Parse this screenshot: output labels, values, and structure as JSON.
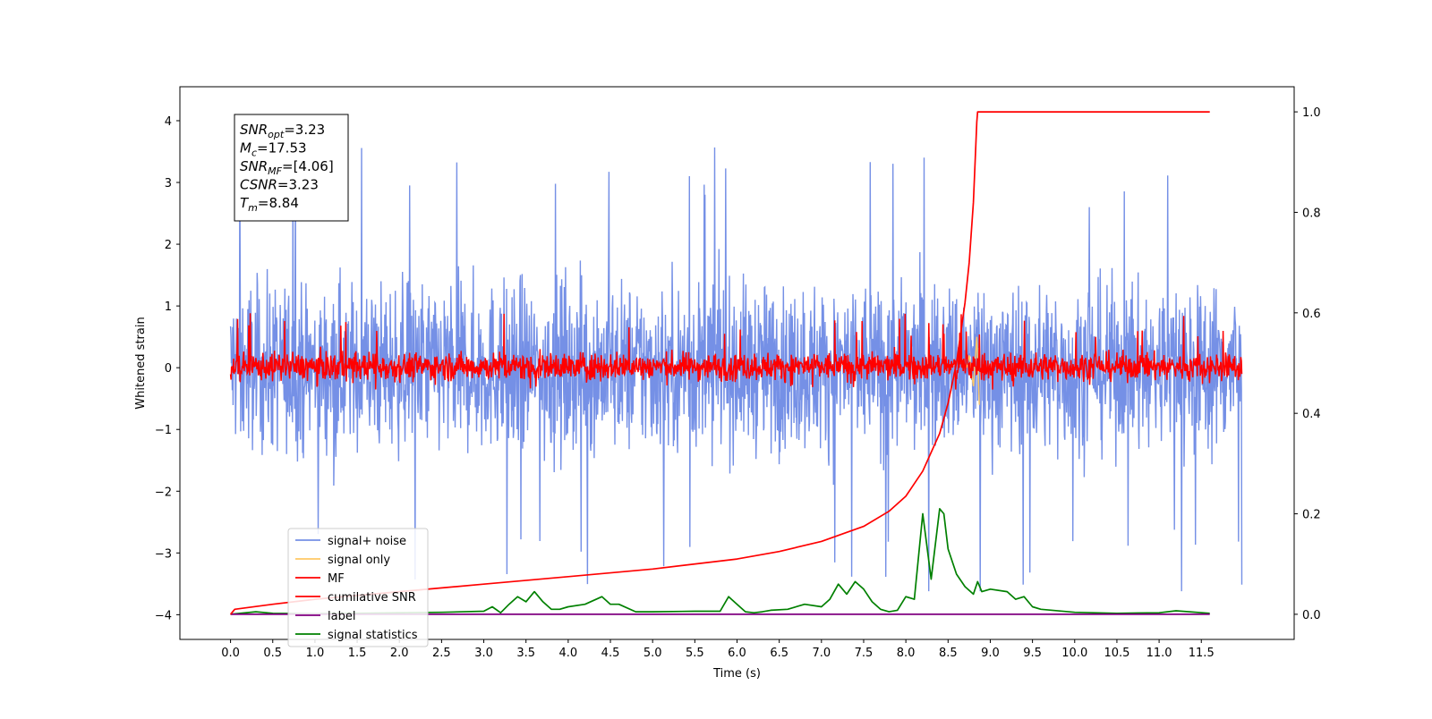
{
  "chart_data": {
    "type": "line",
    "xlabel": "Time (s)",
    "ylabel": "Whitened strain",
    "xlim": [
      -0.6,
      12.6
    ],
    "ylim": [
      -4.4,
      4.55
    ],
    "ylim_right": [
      -0.05,
      1.05
    ],
    "x_ticks": [
      "0.0",
      "0.5",
      "1.0",
      "1.5",
      "2.0",
      "2.5",
      "3.0",
      "3.5",
      "4.0",
      "4.5",
      "5.0",
      "5.5",
      "6.0",
      "6.5",
      "7.0",
      "7.5",
      "8.0",
      "8.5",
      "9.0",
      "9.5",
      "10.0",
      "10.5",
      "11.0",
      "11.5"
    ],
    "y_ticks": [
      "4",
      "3",
      "2",
      "1",
      "0",
      "−1",
      "−2",
      "−3",
      "−4"
    ],
    "y_ticks_right": [
      "1.0",
      "0.8",
      "0.6",
      "0.4",
      "0.2",
      "0.0"
    ],
    "legend_position": "lower-left",
    "colors": {
      "signal_noise": "#7590e6",
      "signal_only": "#ffc864",
      "mf": "#ff0000",
      "cumulative_snr": "#ff0000",
      "label": "#800080",
      "signal_statistics": "#008000"
    },
    "series": [
      {
        "name": "signal+ noise",
        "description_range": [
          -3.6,
          4.2
        ],
        "envelope": {
          "upper": 2.3,
          "lower": -2.2,
          "spike_max": 4.17,
          "spike_min": -3.62
        }
      },
      {
        "name": "signal only",
        "x": [
          8.72,
          8.75,
          8.8,
          8.84,
          8.87
        ],
        "values": [
          0.0,
          0.2,
          -0.3,
          0.5,
          -0.6
        ]
      },
      {
        "name": "MF",
        "envelope": {
          "upper": 0.45,
          "lower": -0.35,
          "spike_max": 1.0,
          "spike_min": -0.45
        }
      },
      {
        "name": "cumilative SNR",
        "axis": "right",
        "x": [
          0.0,
          0.05,
          0.5,
          1.0,
          2.0,
          3.0,
          4.0,
          5.0,
          6.0,
          6.5,
          7.0,
          7.5,
          7.8,
          8.0,
          8.2,
          8.4,
          8.5,
          8.6,
          8.7,
          8.75,
          8.8,
          8.84,
          8.85,
          11.6
        ],
        "values": [
          0.0,
          0.01,
          0.02,
          0.03,
          0.045,
          0.06,
          0.075,
          0.09,
          0.11,
          0.125,
          0.145,
          0.175,
          0.205,
          0.235,
          0.285,
          0.36,
          0.42,
          0.5,
          0.62,
          0.7,
          0.82,
          0.98,
          1.0,
          1.0
        ]
      },
      {
        "name": "label",
        "axis": "right",
        "x": [
          0.0,
          11.6
        ],
        "values": [
          0.0,
          0.0
        ]
      },
      {
        "name": "signal statistics",
        "axis": "right",
        "x": [
          0.0,
          0.3,
          0.5,
          1.0,
          1.5,
          2.0,
          2.5,
          3.0,
          3.1,
          3.2,
          3.3,
          3.4,
          3.5,
          3.6,
          3.7,
          3.8,
          3.9,
          4.0,
          4.2,
          4.4,
          4.5,
          4.6,
          4.8,
          5.0,
          5.5,
          5.8,
          5.9,
          6.0,
          6.1,
          6.2,
          6.3,
          6.4,
          6.6,
          6.8,
          7.0,
          7.1,
          7.2,
          7.3,
          7.4,
          7.5,
          7.6,
          7.7,
          7.8,
          7.9,
          8.0,
          8.1,
          8.2,
          8.3,
          8.4,
          8.45,
          8.5,
          8.6,
          8.7,
          8.8,
          8.85,
          8.9,
          9.0,
          9.2,
          9.3,
          9.4,
          9.5,
          9.6,
          10.0,
          10.5,
          11.0,
          11.2,
          11.6
        ],
        "values": [
          0.0,
          0.005,
          0.002,
          0.001,
          0.002,
          0.003,
          0.004,
          0.006,
          0.015,
          0.003,
          0.02,
          0.035,
          0.025,
          0.045,
          0.025,
          0.01,
          0.01,
          0.015,
          0.02,
          0.035,
          0.02,
          0.02,
          0.005,
          0.005,
          0.006,
          0.006,
          0.035,
          0.02,
          0.005,
          0.003,
          0.005,
          0.008,
          0.01,
          0.02,
          0.015,
          0.03,
          0.06,
          0.04,
          0.065,
          0.05,
          0.025,
          0.01,
          0.005,
          0.008,
          0.035,
          0.03,
          0.2,
          0.07,
          0.21,
          0.2,
          0.13,
          0.08,
          0.055,
          0.04,
          0.065,
          0.045,
          0.05,
          0.045,
          0.03,
          0.035,
          0.015,
          0.01,
          0.004,
          0.002,
          0.003,
          0.007,
          0.002
        ]
      }
    ],
    "annotation": {
      "lines": [
        {
          "base": "SNR",
          "sub": "opt",
          "value": "=3.23"
        },
        {
          "base": "M",
          "sub": "c",
          "value": "=17.53"
        },
        {
          "base": "SNR",
          "sub": "MF",
          "value": "=[4.06]"
        },
        {
          "base": "CSNR",
          "sub": "",
          "value": "=3.23"
        },
        {
          "base": "T",
          "sub": "m",
          "value": "=8.84"
        }
      ]
    }
  }
}
